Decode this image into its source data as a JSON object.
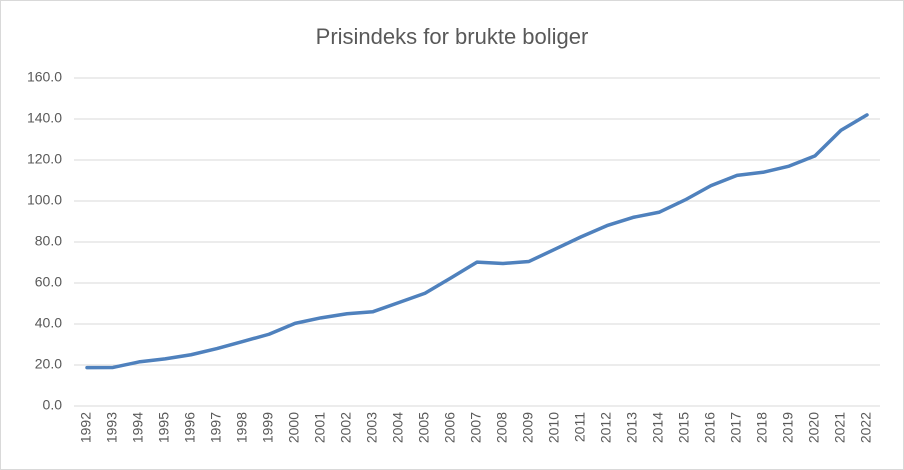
{
  "chart_data": {
    "type": "line",
    "title": "Prisindeks for brukte boliger",
    "categories": [
      "1992",
      "1993",
      "1994",
      "1995",
      "1996",
      "1997",
      "1998",
      "1999",
      "2000",
      "2001",
      "2002",
      "2003",
      "2004",
      "2005",
      "2006",
      "2007",
      "2008",
      "2009",
      "2010",
      "2011",
      "2012",
      "2013",
      "2014",
      "2015",
      "2016",
      "2017",
      "2018",
      "2019",
      "2020",
      "2021",
      "2022"
    ],
    "series": [
      {
        "color": "#4f81bd",
        "values": [
          18.7,
          18.8,
          21.5,
          23,
          25,
          28,
          31.5,
          35,
          40.3,
          43,
          45,
          46,
          50.5,
          55,
          62.5,
          70.2,
          69.5,
          70.5,
          76.5,
          82.5,
          88,
          92,
          94.5,
          100.5,
          107.5,
          112.5,
          114,
          117,
          122,
          134.5,
          142
        ]
      }
    ],
    "ylim": [
      0,
      160
    ],
    "yticks": [
      {
        "value": 0,
        "label": "0.0"
      },
      {
        "value": 20,
        "label": "20.0"
      },
      {
        "value": 40,
        "label": "40.0"
      },
      {
        "value": 60,
        "label": "60.0"
      },
      {
        "value": 80,
        "label": "80.0"
      },
      {
        "value": 100,
        "label": "100.0"
      },
      {
        "value": 120,
        "label": "120.0"
      },
      {
        "value": 140,
        "label": "140.0"
      },
      {
        "value": 160,
        "label": "160.0"
      }
    ],
    "grid": true
  }
}
